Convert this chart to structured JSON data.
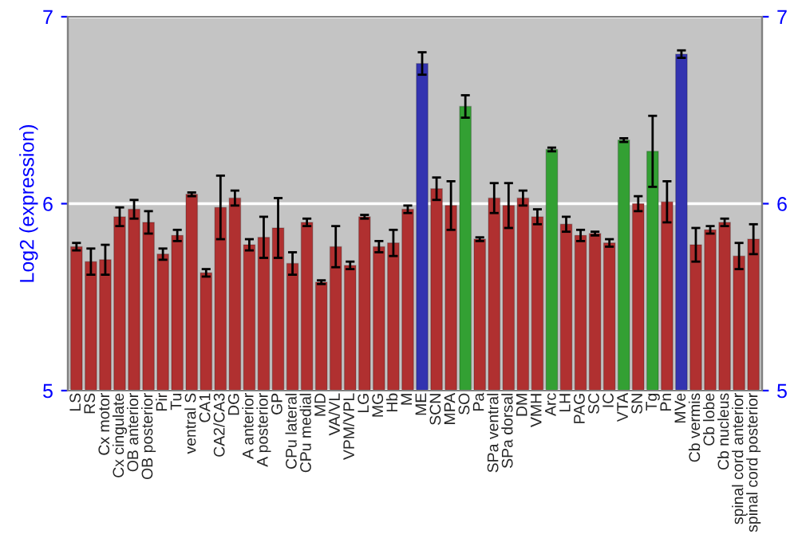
{
  "chart_data": {
    "type": "bar",
    "ylabel": "Log2 (expression)",
    "categories": [
      "LS",
      "RS",
      "Cx motor",
      "Cx cingulate",
      "OB anterior",
      "OB posterior",
      "Pir",
      "Tu",
      "ventral S",
      "CA1",
      "CA2/CA3",
      "DG",
      "A anterior",
      "A posterior",
      "GP",
      "CPu lateral",
      "CPu medial",
      "MD",
      "VA/VL",
      "VPM/VPL",
      "LG",
      "MG",
      "Hb",
      "M",
      "ME",
      "SCN",
      "MPA",
      "SO",
      "Pa",
      "SPa ventral",
      "SPa dorsal",
      "DM",
      "VMH",
      "Arc",
      "LH",
      "PAG",
      "SC",
      "IC",
      "VTA",
      "SN",
      "Tg",
      "Pn",
      "MVe",
      "Cb vermis",
      "Cb lobe",
      "Cb nucleus",
      "spinal cord anterior",
      "spinal cord posterior"
    ],
    "values": [
      5.77,
      5.69,
      5.7,
      5.93,
      5.97,
      5.9,
      5.73,
      5.83,
      6.05,
      5.63,
      5.98,
      6.03,
      5.78,
      5.82,
      5.87,
      5.68,
      5.9,
      5.58,
      5.77,
      5.67,
      5.93,
      5.77,
      5.79,
      5.97,
      6.75,
      6.08,
      5.99,
      6.52,
      5.81,
      6.03,
      5.99,
      6.03,
      5.93,
      6.29,
      5.89,
      5.83,
      5.84,
      5.79,
      6.34,
      6.0,
      6.28,
      6.01,
      6.8,
      5.78,
      5.86,
      5.9,
      5.72,
      5.81
    ],
    "errors": [
      0.02,
      0.07,
      0.08,
      0.05,
      0.05,
      0.06,
      0.03,
      0.03,
      0.01,
      0.02,
      0.17,
      0.04,
      0.03,
      0.11,
      0.16,
      0.06,
      0.02,
      0.01,
      0.11,
      0.02,
      0.01,
      0.03,
      0.07,
      0.02,
      0.06,
      0.06,
      0.13,
      0.06,
      0.01,
      0.08,
      0.12,
      0.04,
      0.04,
      0.01,
      0.04,
      0.03,
      0.01,
      0.02,
      0.01,
      0.04,
      0.19,
      0.11,
      0.02,
      0.09,
      0.02,
      0.02,
      0.07,
      0.08
    ],
    "colors": [
      "#b03030",
      "#b03030",
      "#b03030",
      "#b03030",
      "#b03030",
      "#b03030",
      "#b03030",
      "#b03030",
      "#b03030",
      "#b03030",
      "#b03030",
      "#b03030",
      "#b03030",
      "#b03030",
      "#b03030",
      "#b03030",
      "#b03030",
      "#b03030",
      "#b03030",
      "#b03030",
      "#b03030",
      "#b03030",
      "#b03030",
      "#b03030",
      "#3333b0",
      "#b03030",
      "#b03030",
      "#33a033",
      "#b03030",
      "#b03030",
      "#b03030",
      "#b03030",
      "#b03030",
      "#33a033",
      "#b03030",
      "#b03030",
      "#b03030",
      "#b03030",
      "#33a033",
      "#b03030",
      "#33a033",
      "#b03030",
      "#3333b0",
      "#b03030",
      "#b03030",
      "#b03030",
      "#b03030",
      "#b03030"
    ],
    "ylim": [
      5,
      7
    ],
    "yticks": [
      5,
      6,
      7
    ],
    "y2lim": [
      5,
      7
    ],
    "y2ticks": [
      5,
      6,
      7
    ],
    "grid": "y"
  }
}
